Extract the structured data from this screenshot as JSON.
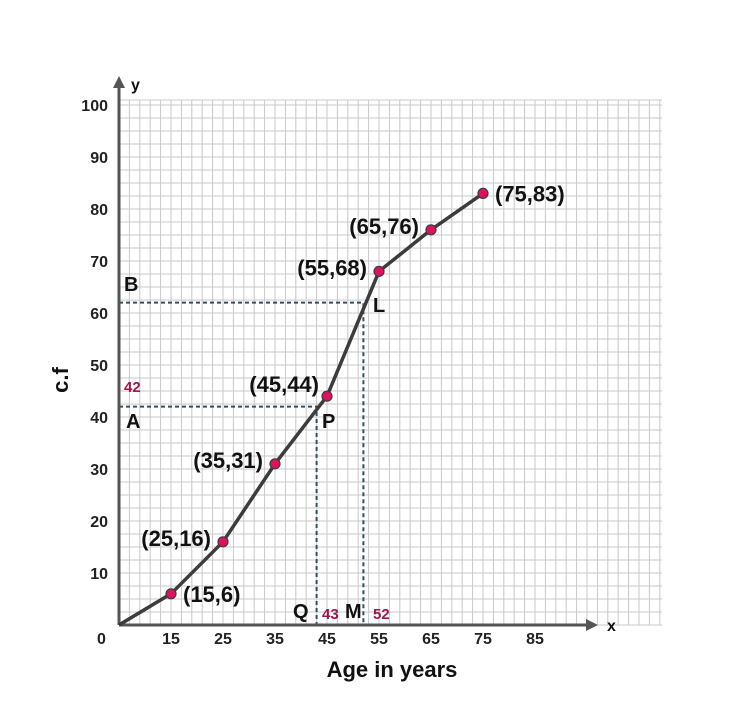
{
  "chart_data": {
    "type": "line",
    "xlabel": "Age in years",
    "ylabel": "c.f",
    "x_axis_letter": "x",
    "y_axis_letter": "y",
    "origin_label": "0",
    "xlim": [
      5,
      105
    ],
    "ylim": [
      0,
      100
    ],
    "x_ticks": [
      15,
      25,
      35,
      45,
      55,
      65,
      75,
      85
    ],
    "y_ticks": [
      10,
      20,
      30,
      40,
      50,
      60,
      70,
      80,
      90,
      100
    ],
    "grid": true,
    "series": [
      {
        "x": [
          5,
          15,
          25,
          35,
          45,
          55,
          65,
          75
        ],
        "y": [
          0,
          6,
          16,
          31,
          44,
          68,
          76,
          83
        ]
      }
    ],
    "point_labels": [
      {
        "x": 15,
        "y": 6,
        "text": "(15,6)",
        "position": "right"
      },
      {
        "x": 25,
        "y": 16,
        "text": "(25,16)",
        "position": "left"
      },
      {
        "x": 35,
        "y": 31,
        "text": "(35,31)",
        "position": "left"
      },
      {
        "x": 45,
        "y": 44,
        "text": "(45,44)",
        "position": "above-left"
      },
      {
        "x": 55,
        "y": 68,
        "text": "(55,68)",
        "position": "left"
      },
      {
        "x": 65,
        "y": 76,
        "text": "(65,76)",
        "position": "left"
      },
      {
        "x": 75,
        "y": 83,
        "text": "(75,83)",
        "position": "right"
      }
    ],
    "annotations": {
      "first_guide": {
        "value": 42,
        "value_label": "42",
        "x_value": 43,
        "x_value_label": "43",
        "start_letter": "A",
        "curve_letter": "P",
        "foot_letter": "Q"
      },
      "second_guide": {
        "value": 62,
        "x_value": 52,
        "x_value_label": "52",
        "start_letter": "B",
        "curve_letter": "L",
        "foot_letter": "M"
      }
    },
    "colors": {
      "marker": "#e0115f",
      "line": "#3c3c3c",
      "guide": "#2f5063",
      "annotation_value": "#a0154d",
      "grid": "#c8c8c8"
    }
  }
}
